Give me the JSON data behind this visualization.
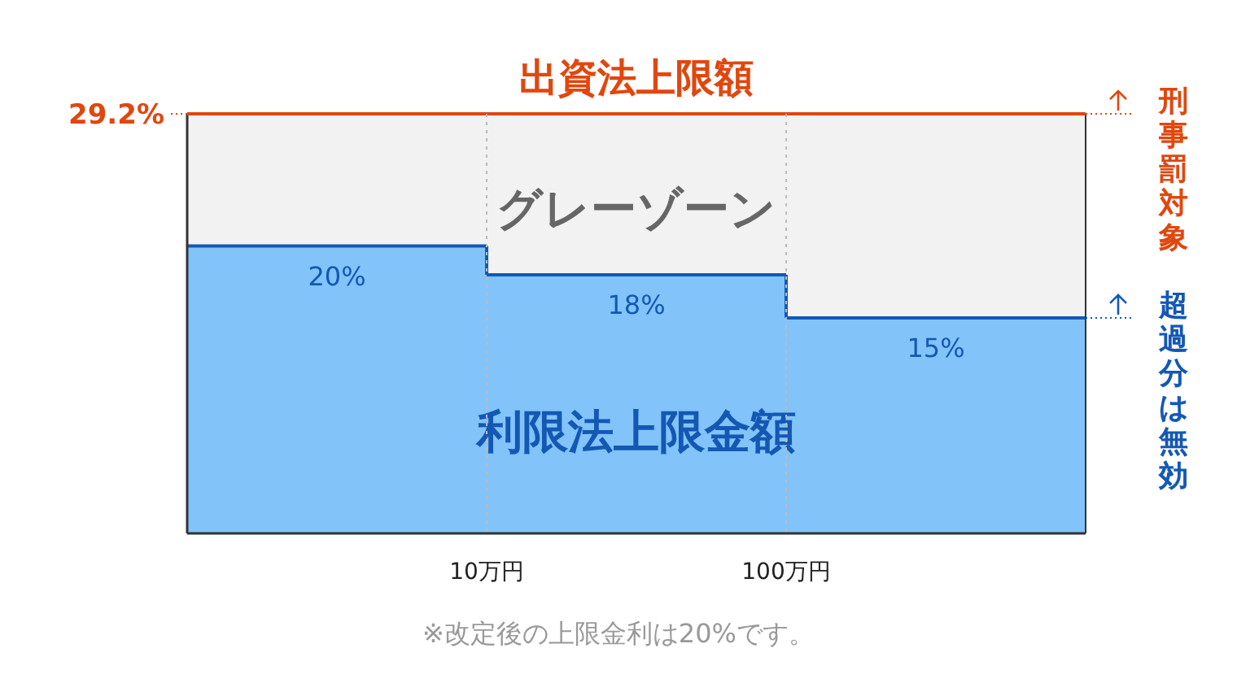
{
  "chart_data": {
    "type": "bar",
    "title": "出資法上限額",
    "categories": [
      null,
      null,
      null
    ],
    "values": [
      20,
      18,
      15
    ],
    "value_labels": [
      "20%",
      "18%",
      "15%"
    ],
    "color": "#82c4fa",
    "ylim": [
      0,
      29.2
    ],
    "ref_lines": [
      {
        "axis": "y",
        "value": 29.2,
        "label": "29.2%",
        "color": "#e0470f"
      }
    ],
    "annotations": [
      "グレーゾーン",
      "利限法上限金額",
      "刑事罰対象",
      "超過分は無効",
      "10万円",
      "100万円",
      "※改定後の上限金利は20%です。"
    ]
  }
}
